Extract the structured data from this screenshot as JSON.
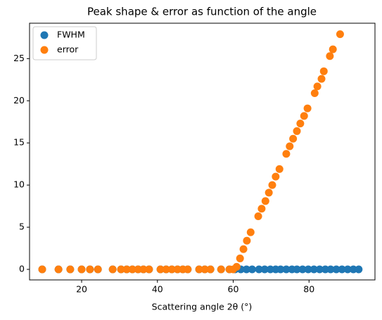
{
  "chart_data": {
    "type": "scatter",
    "title": "Peak shape & error as function of the angle",
    "x_label": "Scattering angle 2θ (°)",
    "xlim": [
      6.26,
      97.4
    ],
    "ylim": [
      -1.25,
      29.2
    ],
    "xticks": [
      20,
      40,
      60,
      80
    ],
    "yticks": [
      0,
      5,
      10,
      15,
      20,
      25
    ],
    "legend": "upper left",
    "series": [
      {
        "name": "FWHM",
        "color": "#1f77b4",
        "x": [
          9.6,
          13.9,
          17.0,
          20.0,
          22.2,
          24.3,
          28.2,
          30.4,
          31.9,
          33.4,
          34.9,
          36.3,
          37.8,
          40.8,
          42.3,
          43.8,
          45.3,
          46.7,
          48.0,
          51.0,
          52.5,
          54.0,
          56.8,
          59.0,
          60.5,
          62.0,
          63.5,
          65.0,
          66.8,
          68.3,
          69.8,
          71.2,
          72.5,
          74.0,
          75.5,
          76.8,
          78.3,
          79.8,
          81.3,
          82.8,
          84.3,
          85.7,
          87.2,
          88.7,
          90.2,
          91.7,
          93.1
        ],
        "values": [
          0,
          0,
          0,
          0,
          0,
          0,
          0,
          0,
          0,
          0,
          0,
          0,
          0,
          0,
          0,
          0,
          0,
          0,
          0,
          0,
          0,
          0,
          0,
          0,
          0,
          0,
          0,
          0,
          0,
          0,
          0,
          0,
          0,
          0,
          0,
          0,
          0,
          0,
          0,
          0,
          0,
          0,
          0,
          0,
          0,
          0,
          0
        ]
      },
      {
        "name": "error",
        "color": "#ff7f0e",
        "x": [
          9.6,
          13.9,
          17.0,
          20.0,
          22.2,
          24.3,
          28.2,
          30.4,
          31.9,
          33.4,
          34.9,
          36.3,
          37.8,
          40.8,
          42.3,
          43.8,
          45.3,
          46.7,
          48.0,
          51.0,
          52.5,
          54.0,
          56.8,
          59.0,
          60.0,
          60.9,
          61.8,
          62.7,
          63.6,
          64.6,
          66.6,
          67.5,
          68.5,
          69.4,
          70.3,
          71.2,
          72.2,
          74.0,
          74.9,
          75.8,
          76.8,
          77.7,
          78.7,
          79.6,
          81.5,
          82.2,
          83.3,
          83.9,
          85.5,
          86.3,
          88.2
        ],
        "values": [
          0,
          0,
          0,
          0,
          0,
          0,
          0,
          0,
          0,
          0,
          0,
          0,
          0,
          0,
          0,
          0,
          0,
          0,
          0,
          0,
          0,
          0,
          0,
          0,
          0,
          0.3,
          1.3,
          2.4,
          3.4,
          4.4,
          6.3,
          7.2,
          8.1,
          9.1,
          10.0,
          11.0,
          11.9,
          13.7,
          14.6,
          15.5,
          16.4,
          17.3,
          18.2,
          19.1,
          20.9,
          21.7,
          22.6,
          23.5,
          25.3,
          26.1,
          27.9
        ]
      }
    ]
  }
}
